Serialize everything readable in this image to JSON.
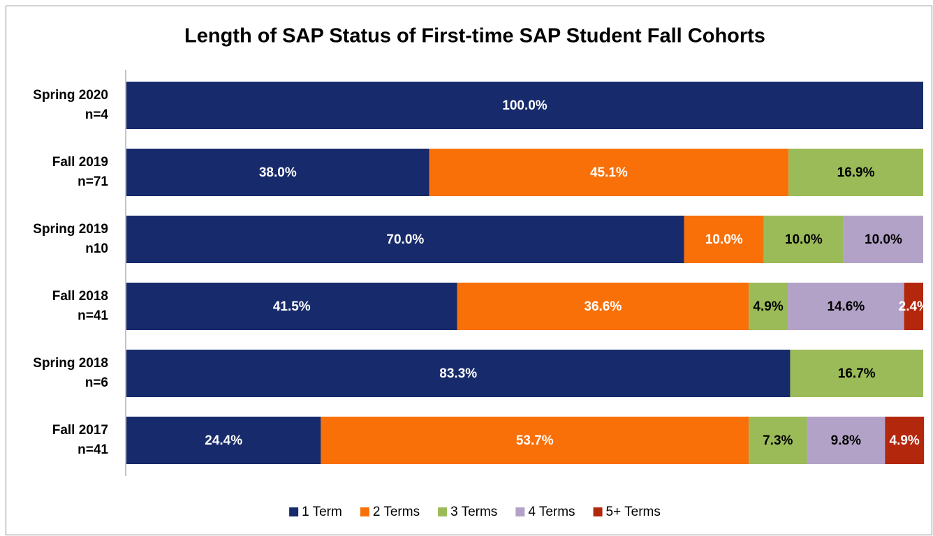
{
  "chart_data": {
    "type": "stacked-bar-horizontal",
    "title": "Length of SAP Status of First-time SAP Student Fall Cohorts",
    "categories": [
      [
        "Spring 2020",
        "n=4"
      ],
      [
        "Fall 2019",
        "n=71"
      ],
      [
        "Spring 2019",
        "n10"
      ],
      [
        "Fall 2018",
        "n=41"
      ],
      [
        "Spring 2018",
        "n=6"
      ],
      [
        "Fall 2017",
        "n=41"
      ]
    ],
    "xlim": [
      0,
      100
    ],
    "series": [
      {
        "name": "1 Term",
        "color": "#172a6b",
        "label_color": "#ffffff",
        "values": [
          100,
          38.0,
          70.0,
          41.5,
          83.3,
          24.4
        ],
        "value_labels": [
          "100.0%",
          "38.0%",
          "70.0%",
          "41.5%",
          "83.3%",
          "24.4%"
        ]
      },
      {
        "name": "2 Terms",
        "color": "#f97008",
        "label_color": "#ffffff",
        "values": [
          null,
          45.1,
          10.0,
          36.6,
          null,
          53.7
        ],
        "value_labels": [
          null,
          "45.1%",
          "10.0%",
          "36.6%",
          null,
          "53.7%"
        ]
      },
      {
        "name": "3 Terms",
        "color": "#9bbb59",
        "label_color": "#000000",
        "values": [
          null,
          16.9,
          10.0,
          4.9,
          16.7,
          7.3
        ],
        "value_labels": [
          null,
          "16.9%",
          "10.0%",
          "4.9%",
          "16.7%",
          "7.3%"
        ]
      },
      {
        "name": "4 Terms",
        "color": "#b3a2c7",
        "label_color": "#000000",
        "values": [
          null,
          null,
          10.0,
          14.6,
          null,
          9.8
        ],
        "value_labels": [
          null,
          null,
          "10.0%",
          "14.6%",
          null,
          "9.8%"
        ]
      },
      {
        "name": "5+ Terms",
        "color": "#b3270d",
        "label_color": "#ffffff",
        "values": [
          null,
          null,
          null,
          2.4,
          null,
          4.9
        ],
        "value_labels": [
          null,
          null,
          null,
          "2.4%",
          null,
          "4.9%"
        ]
      }
    ],
    "legend": "bottom"
  }
}
